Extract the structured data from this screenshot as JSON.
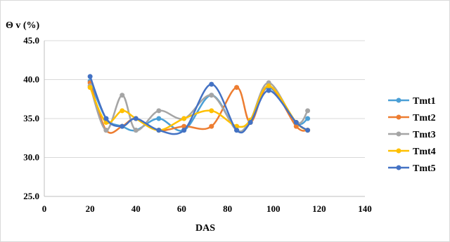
{
  "chart_data": {
    "type": "line",
    "ylabel": "Θ v (%)",
    "xlabel": "DAS",
    "xlim": [
      0,
      140
    ],
    "ylim": [
      25,
      45
    ],
    "x_ticks": [
      "0",
      "20",
      "40",
      "60",
      "80",
      "100",
      "120",
      "140"
    ],
    "y_ticks": [
      "25.0",
      "30.0",
      "35.0",
      "40.0",
      "45.0"
    ],
    "grid": "horizontal",
    "legend_position": "right",
    "x": [
      20,
      27,
      34,
      40,
      50,
      61,
      73,
      84,
      90,
      98,
      110,
      115
    ],
    "series": [
      {
        "name": "Tmt1",
        "color": "#4a9fd6",
        "values": [
          39.8,
          35.0,
          34.0,
          33.5,
          35.0,
          33.5,
          38.0,
          33.5,
          34.8,
          39.0,
          34.5,
          35.0
        ]
      },
      {
        "name": "Tmt2",
        "color": "#ed7d31",
        "values": [
          39.6,
          33.5,
          34.0,
          35.0,
          33.5,
          34.0,
          34.0,
          39.0,
          34.5,
          39.2,
          34.0,
          33.5
        ]
      },
      {
        "name": "Tmt3",
        "color": "#a5a5a5",
        "values": [
          39.2,
          33.5,
          38.0,
          33.5,
          36.0,
          35.0,
          38.0,
          33.5,
          34.8,
          39.6,
          34.5,
          36.0
        ]
      },
      {
        "name": "Tmt4",
        "color": "#ffc000",
        "values": [
          39.0,
          34.5,
          36.0,
          35.0,
          33.5,
          35.0,
          36.0,
          34.0,
          34.8,
          39.2,
          34.5,
          33.5
        ]
      },
      {
        "name": "Tmt5",
        "color": "#4472c4",
        "values": [
          40.4,
          35.0,
          34.0,
          35.0,
          33.5,
          33.5,
          39.4,
          33.5,
          34.5,
          38.6,
          34.5,
          33.5
        ]
      }
    ]
  }
}
